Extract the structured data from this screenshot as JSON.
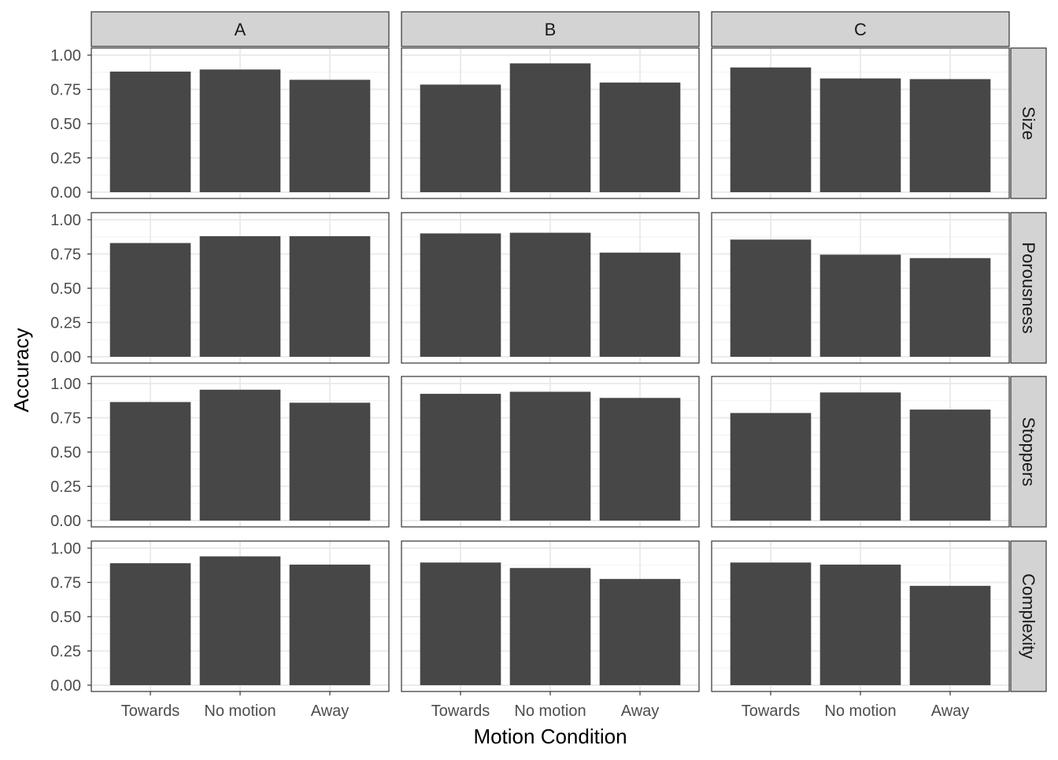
{
  "chart_data": {
    "type": "bar",
    "layout": "facet_grid",
    "xlabel": "Motion Condition",
    "ylabel": "Accuracy",
    "ylim": [
      0,
      1.05
    ],
    "yticks": [
      "0.00",
      "0.25",
      "0.50",
      "0.75",
      "1.00"
    ],
    "ytick_values": [
      0,
      0.25,
      0.5,
      0.75,
      1.0
    ],
    "categories": [
      "Towards",
      "No motion",
      "Away"
    ],
    "columns": [
      "A",
      "B",
      "C"
    ],
    "rows": [
      "Size",
      "Porousness",
      "Stoppers",
      "Complexity"
    ],
    "grid": true,
    "bar_color": "#474747",
    "strip_fill": "#d3d3d3",
    "values": {
      "Size": {
        "A": [
          0.88,
          0.895,
          0.82
        ],
        "B": [
          0.785,
          0.94,
          0.8
        ],
        "C": [
          0.91,
          0.83,
          0.825
        ]
      },
      "Porousness": {
        "A": [
          0.83,
          0.88,
          0.88
        ],
        "B": [
          0.9,
          0.905,
          0.76
        ],
        "C": [
          0.855,
          0.745,
          0.72
        ]
      },
      "Stoppers": {
        "A": [
          0.865,
          0.955,
          0.86
        ],
        "B": [
          0.925,
          0.94,
          0.895
        ],
        "C": [
          0.785,
          0.935,
          0.81
        ]
      },
      "Complexity": {
        "A": [
          0.89,
          0.94,
          0.88
        ],
        "B": [
          0.895,
          0.855,
          0.775
        ],
        "C": [
          0.895,
          0.88,
          0.725
        ]
      }
    }
  }
}
